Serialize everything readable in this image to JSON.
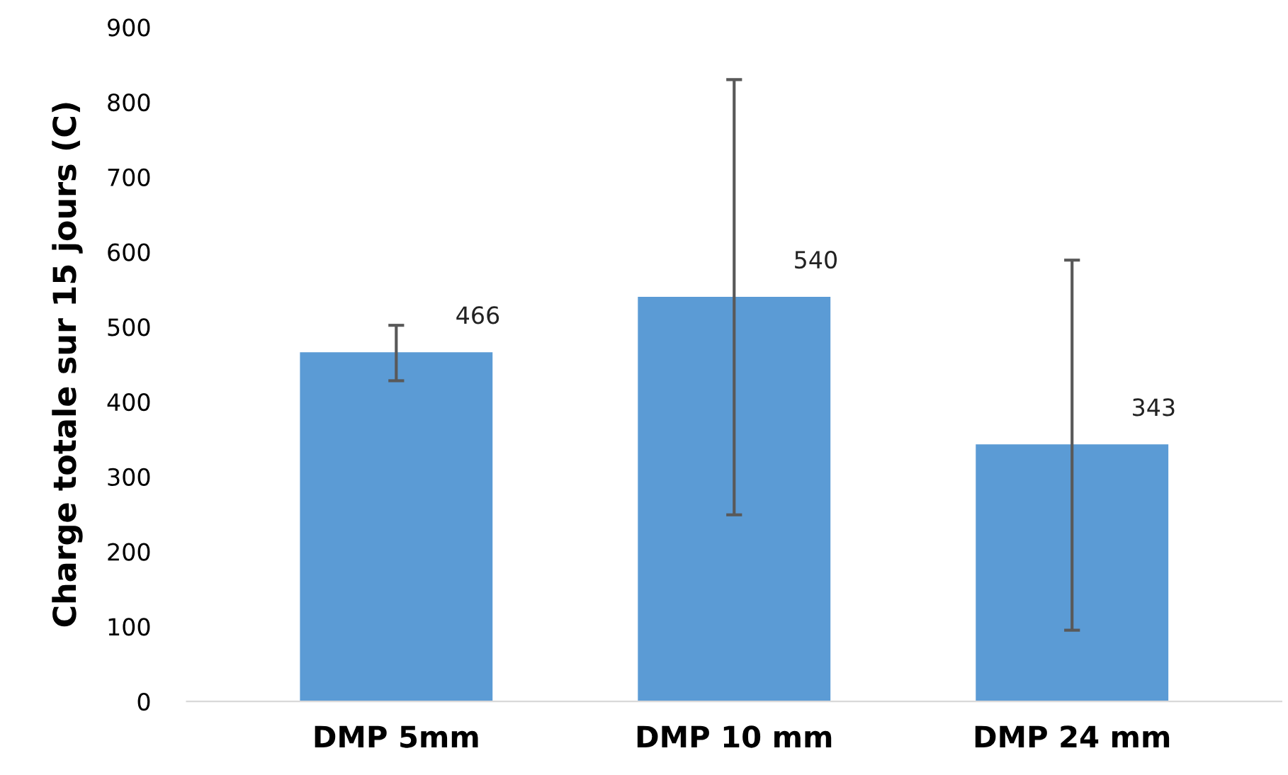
{
  "chart_data": {
    "type": "bar",
    "ylabel": "Charge totale sur 15 jours (C)",
    "categories": [
      "DMP 5mm",
      "DMP 10 mm",
      "DMP 24 mm"
    ],
    "values": [
      466,
      540,
      343
    ],
    "errors": [
      [
        428,
        502
      ],
      [
        249,
        830
      ],
      [
        95,
        589
      ]
    ],
    "color": "#5b9bd5",
    "ylim": [
      0,
      900
    ],
    "yticks": [
      0,
      100,
      200,
      300,
      400,
      500,
      600,
      700,
      800,
      900
    ],
    "grid": false,
    "data_labels": true
  }
}
